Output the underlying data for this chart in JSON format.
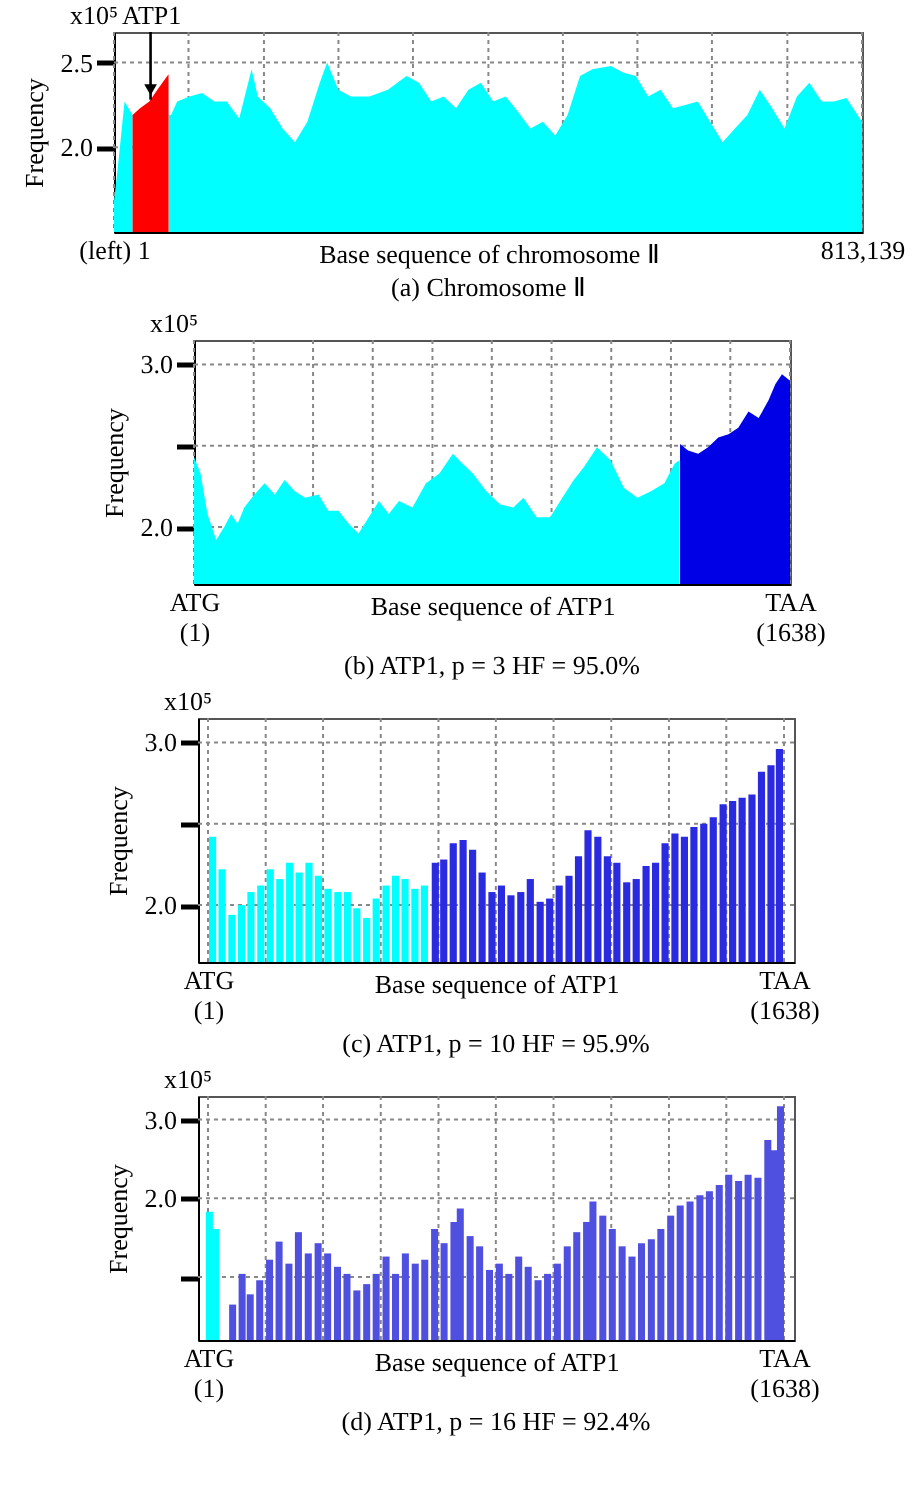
{
  "chart_data": [
    {
      "type": "area",
      "title": "(a) Chromosome Ⅱ",
      "xlabel": "Base sequence of chromosome Ⅱ",
      "ylabel": "Frequency",
      "annotations": [
        "x10⁵",
        "ATP1"
      ],
      "xlim": [
        1,
        813139
      ],
      "xticks": [
        {
          "value": 1,
          "label": "(left) 1"
        },
        {
          "value": 81000,
          "label": null
        },
        {
          "value": 163000,
          "label": null
        },
        {
          "value": 244000,
          "label": null
        },
        {
          "value": 325000,
          "label": null
        },
        {
          "value": 407000,
          "label": null
        },
        {
          "value": 488000,
          "label": null
        },
        {
          "value": 569000,
          "label": null
        },
        {
          "value": 650000,
          "label": null
        },
        {
          "value": 732000,
          "label": null
        },
        {
          "value": 813139,
          "label": "813,139"
        }
      ],
      "ylim": [
        1.5,
        2.68
      ],
      "yticks": [
        {
          "value": 2,
          "label": "2.0"
        },
        2.5
      ],
      "grid": true,
      "series": [
        {
          "color": "#00ffff",
          "x": [
            1,
            4700,
            11450,
            20200,
            20201,
            59300,
            62000,
            68700,
            82200,
            95700,
            109100,
            122600,
            136100,
            149600,
            156300,
            169800,
            183300,
            196700,
            210200,
            223700,
            231700,
            243900,
            257300,
            277600,
            297800,
            318000,
            331500,
            344900,
            358400,
            371900,
            385300,
            398800,
            412300,
            425800,
            439200,
            452700,
            466200,
            479700,
            493100,
            506600,
            520100,
            540300,
            553800,
            567300,
            580700,
            594200,
            607700,
            621100,
            634600,
            648100,
            661600,
            675000,
            688500,
            702000,
            715500,
            728900,
            742400,
            755900,
            769400,
            782800,
            796300,
            813139
          ],
          "values": [
            1.68,
            1.91,
            2.27,
            2.19,
            null,
            2.19,
            2.19,
            2.27,
            2.3,
            2.32,
            2.27,
            2.27,
            2.17,
            2.46,
            2.3,
            2.23,
            2.11,
            2.03,
            2.15,
            2.38,
            2.5,
            2.34,
            2.3,
            2.3,
            2.34,
            2.42,
            2.38,
            2.27,
            2.3,
            2.23,
            2.34,
            2.38,
            2.27,
            2.3,
            2.21,
            2.11,
            2.15,
            2.07,
            2.19,
            2.42,
            2.46,
            2.48,
            2.44,
            2.42,
            2.3,
            2.34,
            2.23,
            2.25,
            2.27,
            2.15,
            2.03,
            2.11,
            2.19,
            2.34,
            2.23,
            2.11,
            2.3,
            2.38,
            2.27,
            2.27,
            2.29,
            2.15
          ]
        },
        {
          "color": "#ff0000",
          "x": [
            20200,
            28300,
            38400,
            48500,
            59300
          ],
          "values": [
            2.19,
            2.23,
            2.27,
            2.35,
            2.43
          ]
        }
      ]
    },
    {
      "type": "area",
      "title": "(b) ATP1, p = 3 HF = 95.0%",
      "xlabel": "Base sequence of ATP1",
      "ylabel": "Frequency",
      "annotations": [
        "x10⁵"
      ],
      "xlim": [
        1,
        1638
      ],
      "xticks": [
        {
          "value": 1,
          "label": "ATG (1)"
        },
        {
          "value": 165,
          "label": null
        },
        {
          "value": 328,
          "label": null
        },
        {
          "value": 492,
          "label": null
        },
        {
          "value": 656,
          "label": null
        },
        {
          "value": 819,
          "label": null
        },
        {
          "value": 983,
          "label": null
        },
        {
          "value": 1147,
          "label": null
        },
        {
          "value": 1311,
          "label": null
        },
        {
          "value": 1474,
          "label": null
        },
        {
          "value": 1638,
          "label": "TAA (1638)"
        }
      ],
      "ylim": [
        1.65,
        3.15
      ],
      "yticks": [
        {
          "value": 2,
          "label": "2.0"
        },
        {
          "value": 2.5,
          "label": null
        },
        {
          "value": 3,
          "label": "3.0"
        }
      ],
      "grid": true,
      "series": [
        {
          "color": "#00ffff",
          "x": [
            1,
            19,
            38,
            62,
            84,
            103,
            121,
            139,
            167,
            195,
            223,
            250,
            278,
            306,
            343,
            370,
            398,
            426,
            453,
            481,
            509,
            536,
            564,
            601,
            638,
            675,
            712,
            739,
            767,
            804,
            841,
            878,
            906,
            942,
            979,
            1007,
            1044,
            1072,
            1108,
            1145,
            1182,
            1219,
            1256,
            1293,
            1321,
            1334
          ],
          "values": [
            2.43,
            2.33,
            2.08,
            1.92,
            2.0,
            2.08,
            2.02,
            2.12,
            2.2,
            2.27,
            2.2,
            2.29,
            2.22,
            2.18,
            2.2,
            2.1,
            2.1,
            2.02,
            1.96,
            2.06,
            2.16,
            2.08,
            2.16,
            2.12,
            2.27,
            2.33,
            2.45,
            2.39,
            2.33,
            2.22,
            2.14,
            2.12,
            2.18,
            2.06,
            2.06,
            2.16,
            2.29,
            2.37,
            2.49,
            2.41,
            2.24,
            2.18,
            2.22,
            2.27,
            2.39,
            2.41
          ]
        },
        {
          "color": "#0000e6",
          "x": [
            1336,
            1358,
            1386,
            1413,
            1441,
            1469,
            1496,
            1524,
            1552,
            1579,
            1598,
            1616,
            1638
          ],
          "values": [
            2.51,
            2.47,
            2.45,
            2.49,
            2.55,
            2.57,
            2.61,
            2.71,
            2.67,
            2.78,
            2.88,
            2.94,
            2.9
          ]
        }
      ]
    },
    {
      "type": "bar",
      "title": "(c) ATP1, p = 10 HF = 95.9%",
      "xlabel": "Base sequence of ATP1",
      "ylabel": "Frequency",
      "annotations": [
        "x10⁵"
      ],
      "xlim": [
        1,
        1638
      ],
      "xticks": [
        {
          "value": 1,
          "label": "ATG (1)"
        },
        {
          "value": 165,
          "label": null
        },
        {
          "value": 328,
          "label": null
        },
        {
          "value": 492,
          "label": null
        },
        {
          "value": 656,
          "label": null
        },
        {
          "value": 819,
          "label": null
        },
        {
          "value": 983,
          "label": null
        },
        {
          "value": 1147,
          "label": null
        },
        {
          "value": 1311,
          "label": null
        },
        {
          "value": 1474,
          "label": null
        },
        {
          "value": 1638,
          "label": "TAA (1638)"
        }
      ],
      "ylim": [
        1.65,
        3.15
      ],
      "yticks": [
        {
          "value": 2,
          "label": "2.0"
        },
        {
          "value": 2.5,
          "label": null
        },
        {
          "value": 3,
          "label": "3.0"
        }
      ],
      "grid": true,
      "series": [
        {
          "color": "#00ffff",
          "x": [
            14,
            41,
            69,
            96,
            123,
            151,
            178,
            205,
            233,
            260,
            288,
            315,
            342,
            370,
            397,
            424,
            452,
            479,
            507,
            534,
            561,
            589,
            616
          ],
          "values": [
            2.42,
            2.22,
            1.94,
            2.0,
            2.08,
            2.12,
            2.22,
            2.16,
            2.26,
            2.2,
            2.26,
            2.18,
            2.1,
            2.08,
            2.08,
            1.98,
            1.92,
            2.04,
            2.12,
            2.18,
            2.16,
            2.1,
            2.12
          ]
        },
        {
          "color": "#2a2ae0",
          "x": [
            647,
            671,
            698,
            726,
            753,
            780,
            808,
            835,
            862,
            890,
            917,
            945,
            972,
            999,
            1027,
            1054,
            1081,
            1109,
            1136,
            1163,
            1191,
            1218,
            1246,
            1273,
            1300,
            1328,
            1355,
            1382,
            1410,
            1437,
            1465,
            1492,
            1519,
            1547,
            1574,
            1601,
            1625
          ],
          "values": [
            2.26,
            2.28,
            2.38,
            2.4,
            2.34,
            2.2,
            2.08,
            2.12,
            2.06,
            2.08,
            2.16,
            2.02,
            2.04,
            2.12,
            2.18,
            2.3,
            2.46,
            2.42,
            2.3,
            2.26,
            2.14,
            2.16,
            2.24,
            2.26,
            2.38,
            2.44,
            2.42,
            2.48,
            2.5,
            2.54,
            2.62,
            2.64,
            2.66,
            2.68,
            2.82,
            2.86,
            2.96
          ]
        }
      ]
    },
    {
      "type": "bar",
      "title": "(d) ATP1, p = 16 HF = 92.4%",
      "xlabel": "Base sequence of ATP1",
      "ylabel": "Frequency",
      "annotations": [
        "x10⁵"
      ],
      "xlim": [
        1,
        1638
      ],
      "xticks": [
        {
          "value": 1,
          "label": "ATG (1)"
        },
        {
          "value": 165,
          "label": null
        },
        {
          "value": 328,
          "label": null
        },
        {
          "value": 492,
          "label": null
        },
        {
          "value": 656,
          "label": null
        },
        {
          "value": 819,
          "label": null
        },
        {
          "value": 983,
          "label": null
        },
        {
          "value": 1147,
          "label": null
        },
        {
          "value": 1311,
          "label": null
        },
        {
          "value": 1474,
          "label": null
        },
        {
          "value": 1638,
          "label": "TAA (1638)"
        }
      ],
      "ylim": [
        0.2,
        3.3
      ],
      "yticks": [
        {
          "value": 1,
          "label": null
        },
        {
          "value": 2,
          "label": "2.0"
        },
        {
          "value": 3,
          "label": "3.0"
        }
      ],
      "grid": true,
      "series": [
        {
          "color": "#00ffff",
          "x": [
            5,
            23
          ],
          "values": [
            1.83,
            1.61
          ]
        },
        {
          "color": "#5050e0",
          "x": [
            71,
            98,
            121,
            148,
            176,
            203,
            231,
            258,
            286,
            314,
            341,
            369,
            396,
            424,
            452,
            479,
            507,
            534,
            562,
            590,
            617,
            645,
            672,
            700,
            718,
            746,
            773,
            801,
            829,
            856,
            884,
            911,
            939,
            966,
            994,
            1022,
            1049,
            1077,
            1095,
            1123,
            1150,
            1178,
            1206,
            1233,
            1261,
            1288,
            1316,
            1343,
            1371,
            1399,
            1426,
            1454,
            1481,
            1509,
            1536,
            1564,
            1592,
            1610,
            1628
          ],
          "values": [
            0.65,
            1.04,
            0.78,
            0.96,
            1.22,
            1.45,
            1.17,
            1.57,
            1.3,
            1.43,
            1.3,
            1.13,
            1.04,
            0.83,
            0.91,
            1.04,
            1.26,
            1.04,
            1.3,
            1.17,
            1.22,
            1.61,
            1.43,
            1.7,
            1.87,
            1.52,
            1.39,
            1.09,
            1.17,
            1.04,
            1.26,
            1.13,
            0.96,
            1.04,
            1.17,
            1.39,
            1.57,
            1.7,
            1.96,
            1.78,
            1.61,
            1.39,
            1.26,
            1.43,
            1.48,
            1.61,
            1.78,
            1.91,
            1.96,
            2.04,
            2.09,
            2.17,
            2.3,
            2.22,
            2.3,
            2.26,
            2.74,
            2.61,
            3.17
          ]
        }
      ]
    }
  ]
}
